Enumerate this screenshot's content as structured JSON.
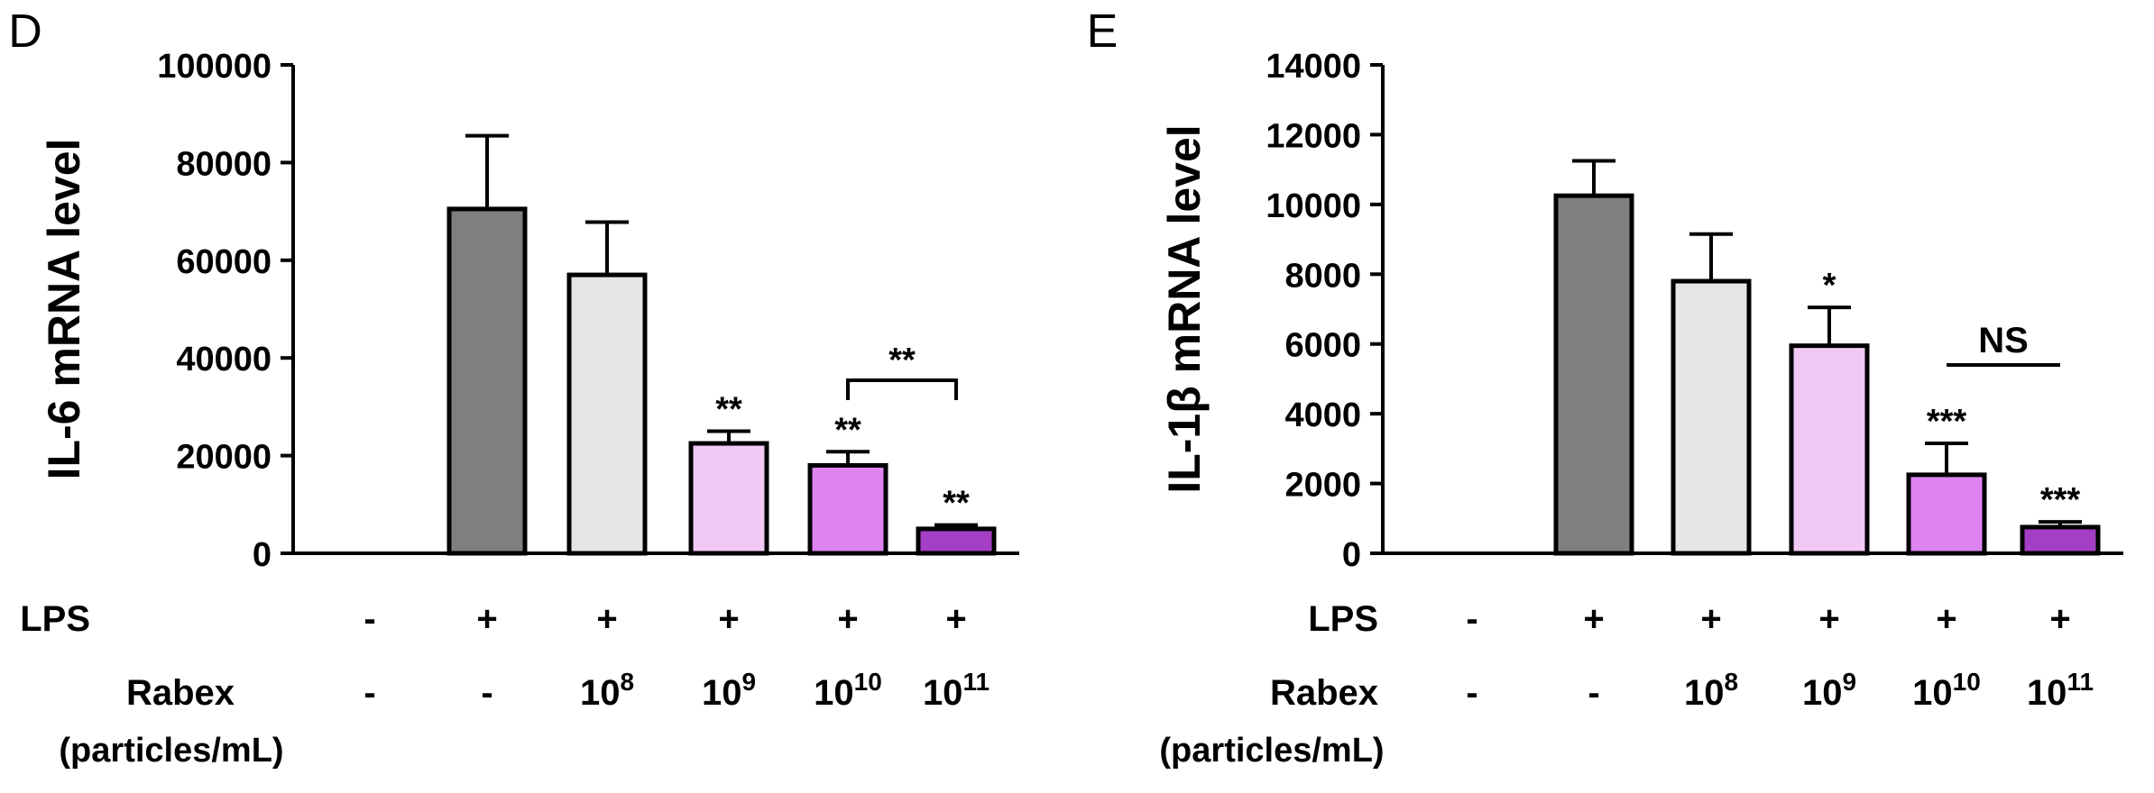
{
  "chart_data": [
    {
      "panel_letter": "D",
      "type": "bar",
      "ylabel": "IL-6 mRNA level",
      "ylim": [
        0,
        100000
      ],
      "yticks": [
        "0",
        "20000",
        "40000",
        "60000",
        "80000",
        "100000"
      ],
      "categories": [
        "-/-",
        "+/-",
        "+/10^8",
        "+/10^9",
        "+/10^10",
        "+/10^11"
      ],
      "values": [
        0,
        70500,
        57000,
        22500,
        18000,
        5000
      ],
      "errors": [
        0,
        15000,
        10800,
        2500,
        2800,
        800
      ],
      "colors": [
        "#ffffff",
        "#7f7f7f",
        "#e6e6e6",
        "#f1c9f4",
        "#dd84f0",
        "#a43ec5"
      ],
      "significance": [
        "",
        "",
        "",
        "**",
        "**",
        "**"
      ],
      "comparison": {
        "from": 4,
        "to": 5,
        "label": "**"
      },
      "row_labels": {
        "lps": "LPS",
        "rabex": "Rabex",
        "units": "(particles/mL)"
      },
      "lps_signs": [
        "-",
        "+",
        "+",
        "+",
        "+",
        "+"
      ],
      "rabex": [
        {
          "base": "-",
          "exp": ""
        },
        {
          "base": "-",
          "exp": ""
        },
        {
          "base": "10",
          "exp": "8"
        },
        {
          "base": "10",
          "exp": "9"
        },
        {
          "base": "10",
          "exp": "10"
        },
        {
          "base": "10",
          "exp": "11"
        }
      ]
    },
    {
      "panel_letter": "E",
      "type": "bar",
      "ylabel": "IL-1β mRNA level",
      "ylim": [
        0,
        14000
      ],
      "yticks": [
        "0",
        "2000",
        "4000",
        "6000",
        "8000",
        "10000",
        "12000",
        "14000"
      ],
      "categories": [
        "-/-",
        "+/-",
        "+/10^8",
        "+/10^9",
        "+/10^10",
        "+/10^11"
      ],
      "values": [
        0,
        10250,
        7800,
        5950,
        2250,
        750
      ],
      "errors": [
        0,
        1000,
        1350,
        1100,
        900,
        150
      ],
      "colors": [
        "#ffffff",
        "#7f7f7f",
        "#e6e6e6",
        "#f1c9f4",
        "#dd84f0",
        "#a43ec5"
      ],
      "significance": [
        "",
        "",
        "",
        "*",
        "***",
        "***"
      ],
      "comparison": {
        "from": 4,
        "to": 5,
        "label": "NS"
      },
      "row_labels": {
        "lps": "LPS",
        "rabex": "Rabex",
        "units": "(particles/mL)"
      },
      "lps_signs": [
        "-",
        "+",
        "+",
        "+",
        "+",
        "+"
      ],
      "rabex": [
        {
          "base": "-",
          "exp": ""
        },
        {
          "base": "-",
          "exp": ""
        },
        {
          "base": "10",
          "exp": "8"
        },
        {
          "base": "10",
          "exp": "9"
        },
        {
          "base": "10",
          "exp": "10"
        },
        {
          "base": "10",
          "exp": "11"
        }
      ]
    }
  ]
}
